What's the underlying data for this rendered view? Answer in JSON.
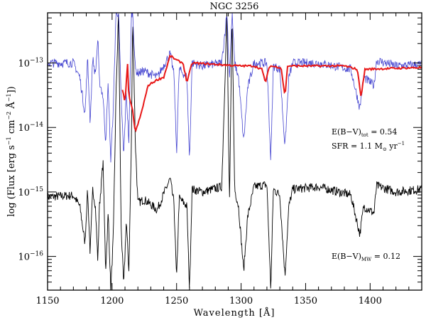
{
  "chart_data": {
    "type": "line",
    "title": "NGC 3256",
    "xlabel": "Wavelength [Å]",
    "ylabel": {
      "prefix": "log (Flux [erg s",
      "s_exp": "−1",
      "cm": " cm",
      "cm_exp": "−2",
      "A": " Å",
      "A_exp": "−1",
      "suffix": "])"
    },
    "xlim": [
      1150,
      1440
    ],
    "ylim": [
      3e-17,
      6e-13
    ],
    "yscale": "log",
    "x_ticks": [
      1150,
      1200,
      1250,
      1300,
      1350,
      1400
    ],
    "x_tick_labels": [
      "1150",
      "1200",
      "1250",
      "1300",
      "1350",
      "1400"
    ],
    "y_ticks": [
      1e-13,
      1e-14,
      1e-15,
      1e-16
    ],
    "y_tick_labels": [
      {
        "base": "10",
        "exp": "−13"
      },
      {
        "base": "10",
        "exp": "−14"
      },
      {
        "base": "10",
        "exp": "−15"
      },
      {
        "base": "10",
        "exp": "−16"
      }
    ],
    "grid": false,
    "colors": {
      "observed": "#000000",
      "dereddened": "#2424c8",
      "model": "#e81818"
    },
    "annotations": {
      "ebv_tot": {
        "main": "E(B−V)",
        "sub": "tot",
        "rest": " = 0.54"
      },
      "sfr": {
        "main": "SFR = 1.1 M",
        "sub": "⊙",
        "rest": " yr",
        "sup": "−1"
      },
      "ebv_mw": {
        "main": "E(B−V)",
        "sub": "MW",
        "rest": " = 0.12"
      }
    },
    "series": [
      {
        "key": "observed",
        "points": [
          [
            1150,
            8.4e-16
          ],
          [
            1170,
            8.8e-16
          ],
          [
            1175,
            6e-16
          ],
          [
            1179,
            1.6e-16
          ],
          [
            1181,
            1.1e-15
          ],
          [
            1183,
            1.1e-16
          ],
          [
            1185,
            1.1e-15
          ],
          [
            1187,
            6.3e-16
          ],
          [
            1189,
            8e-17
          ],
          [
            1190,
            5.3e-16
          ],
          [
            1193,
            3e-15
          ],
          [
            1195,
            6e-17
          ],
          [
            1197,
            4.7e-16
          ],
          [
            1199,
            3e-17
          ],
          [
            1201,
            2.2e-16
          ],
          [
            1203,
            3e-14
          ],
          [
            1205,
            6e-13
          ],
          [
            1207,
            3e-16
          ],
          [
            1209,
            3.4e-17
          ],
          [
            1211,
            3.6e-16
          ],
          [
            1213,
            6e-17
          ],
          [
            1215,
            6e-15
          ],
          [
            1216,
            6e-13
          ],
          [
            1218,
            6e-15
          ],
          [
            1220,
            6.8e-16
          ],
          [
            1225,
            7.6e-16
          ],
          [
            1235,
            5.3e-16
          ],
          [
            1245,
            1.6e-15
          ],
          [
            1248,
            6.5e-16
          ],
          [
            1250,
            4.2e-17
          ],
          [
            1252,
            8e-16
          ],
          [
            1258,
            6e-16
          ],
          [
            1260,
            3e-17
          ],
          [
            1262,
            1.1e-15
          ],
          [
            1270,
            1e-15
          ],
          [
            1285,
            1.2e-15
          ],
          [
            1289,
            6e-13
          ],
          [
            1291,
            6e-16
          ],
          [
            1293,
            6e-13
          ],
          [
            1295,
            1.1e-15
          ],
          [
            1298,
            6e-16
          ],
          [
            1302,
            6e-17
          ],
          [
            1305,
            4e-16
          ],
          [
            1310,
            1.2e-15
          ],
          [
            1320,
            1.3e-15
          ],
          [
            1323,
            3e-17
          ],
          [
            1325,
            1.1e-15
          ],
          [
            1330,
            9e-16
          ],
          [
            1334,
            5e-17
          ],
          [
            1337,
            6e-16
          ],
          [
            1340,
            1.1e-15
          ],
          [
            1360,
            1.2e-15
          ],
          [
            1385,
            9e-16
          ],
          [
            1392,
            2.2e-16
          ],
          [
            1395,
            6e-16
          ],
          [
            1403,
            4.7e-16
          ],
          [
            1405,
            1.25e-15
          ],
          [
            1420,
            1e-15
          ],
          [
            1440,
            1.1e-15
          ]
        ]
      },
      {
        "key": "dereddened",
        "points": [
          [
            1150,
            1e-13
          ],
          [
            1170,
            1e-13
          ],
          [
            1175,
            6e-14
          ],
          [
            1179,
            1.6e-14
          ],
          [
            1181,
            1.2e-13
          ],
          [
            1183,
            1.2e-14
          ],
          [
            1185,
            1.2e-13
          ],
          [
            1187,
            6.5e-14
          ],
          [
            1189,
            2.5e-13
          ],
          [
            1190,
            5.5e-14
          ],
          [
            1193,
            3e-14
          ],
          [
            1195,
            6e-15
          ],
          [
            1197,
            4.8e-14
          ],
          [
            1199,
            3e-15
          ],
          [
            1201,
            2.2e-14
          ],
          [
            1203,
            6e-13
          ],
          [
            1205,
            6e-13
          ],
          [
            1207,
            3e-14
          ],
          [
            1209,
            3.5e-15
          ],
          [
            1211,
            3.6e-14
          ],
          [
            1213,
            6e-15
          ],
          [
            1215,
            6e-13
          ],
          [
            1216,
            6e-13
          ],
          [
            1218,
            8e-14
          ],
          [
            1220,
            7e-14
          ],
          [
            1225,
            7.5e-14
          ],
          [
            1235,
            6e-14
          ],
          [
            1245,
            1.4e-13
          ],
          [
            1248,
            6.5e-14
          ],
          [
            1250,
            4e-15
          ],
          [
            1252,
            8e-14
          ],
          [
            1258,
            6e-14
          ],
          [
            1260,
            3e-15
          ],
          [
            1262,
            1e-13
          ],
          [
            1270,
            9e-14
          ],
          [
            1285,
            1e-13
          ],
          [
            1289,
            6e-13
          ],
          [
            1291,
            6e-14
          ],
          [
            1293,
            6e-13
          ],
          [
            1295,
            1e-13
          ],
          [
            1298,
            6e-14
          ],
          [
            1302,
            6e-15
          ],
          [
            1305,
            4e-14
          ],
          [
            1310,
            1e-13
          ],
          [
            1320,
            1e-13
          ],
          [
            1323,
            3e-15
          ],
          [
            1325,
            9e-14
          ],
          [
            1330,
            8e-14
          ],
          [
            1334,
            5e-15
          ],
          [
            1337,
            6e-14
          ],
          [
            1340,
            1e-13
          ],
          [
            1360,
            1e-13
          ],
          [
            1385,
            8e-14
          ],
          [
            1392,
            2e-14
          ],
          [
            1395,
            6e-14
          ],
          [
            1403,
            4.5e-14
          ],
          [
            1405,
            1.1e-13
          ],
          [
            1420,
            9e-14
          ],
          [
            1440,
            9.5e-14
          ]
        ]
      },
      {
        "key": "model",
        "points": [
          [
            1208,
            3.8e-14
          ],
          [
            1210,
            2.5e-14
          ],
          [
            1212,
            9.5e-14
          ],
          [
            1213,
            3e-14
          ],
          [
            1216,
            1.8e-14
          ],
          [
            1218,
            8.4e-15
          ],
          [
            1222,
            1.5e-14
          ],
          [
            1228,
            4.5e-14
          ],
          [
            1235,
            5.5e-14
          ],
          [
            1240,
            6e-14
          ],
          [
            1245,
            1.3e-13
          ],
          [
            1250,
            1.1e-13
          ],
          [
            1255,
            1e-13
          ],
          [
            1258,
            5e-14
          ],
          [
            1262,
            1e-13
          ],
          [
            1300,
            9e-14
          ],
          [
            1310,
            9e-14
          ],
          [
            1316,
            8e-14
          ],
          [
            1319,
            5e-14
          ],
          [
            1322,
            9e-14
          ],
          [
            1331,
            8.5e-14
          ],
          [
            1334,
            3e-14
          ],
          [
            1336,
            9e-14
          ],
          [
            1380,
            9e-14
          ],
          [
            1390,
            8e-14
          ],
          [
            1393,
            3e-14
          ],
          [
            1396,
            8e-14
          ],
          [
            1440,
            8.5e-14
          ]
        ]
      }
    ]
  }
}
